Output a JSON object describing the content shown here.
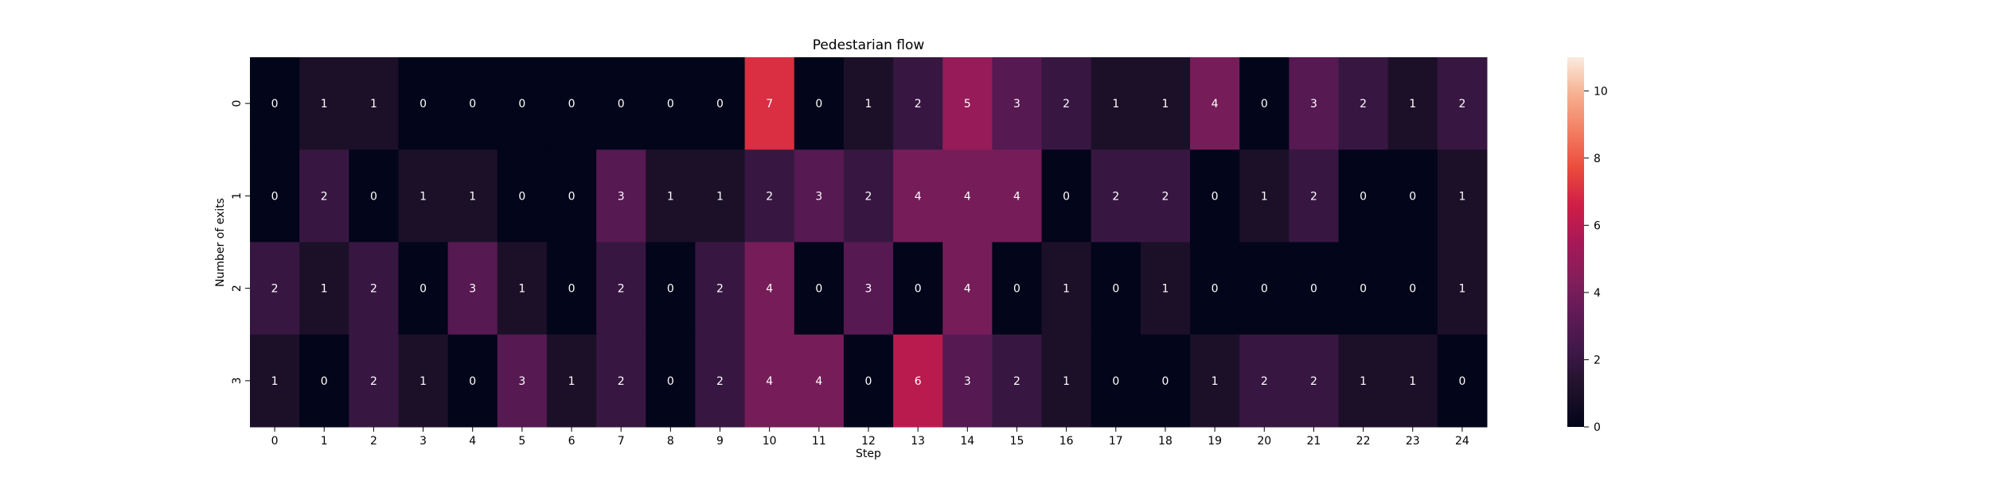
{
  "chart_data": {
    "type": "heatmap",
    "title": "Pedestarian flow",
    "xlabel": "Step",
    "ylabel": "Number of exits",
    "x_categories": [
      "0",
      "1",
      "2",
      "3",
      "4",
      "5",
      "6",
      "7",
      "8",
      "9",
      "10",
      "11",
      "12",
      "13",
      "14",
      "15",
      "16",
      "17",
      "18",
      "19",
      "20",
      "21",
      "22",
      "23",
      "24"
    ],
    "y_categories": [
      "0",
      "1",
      "2",
      "3"
    ],
    "values": [
      [
        0,
        1,
        1,
        0,
        0,
        0,
        0,
        0,
        0,
        0,
        7,
        0,
        1,
        2,
        5,
        3,
        2,
        1,
        1,
        4,
        0,
        3,
        2,
        1,
        2
      ],
      [
        0,
        2,
        0,
        1,
        1,
        0,
        0,
        3,
        1,
        1,
        2,
        3,
        2,
        4,
        4,
        4,
        0,
        2,
        2,
        0,
        1,
        2,
        0,
        0,
        1
      ],
      [
        2,
        1,
        2,
        0,
        3,
        1,
        0,
        2,
        0,
        2,
        4,
        0,
        3,
        0,
        4,
        0,
        1,
        0,
        1,
        0,
        0,
        0,
        0,
        0,
        1
      ],
      [
        1,
        0,
        2,
        1,
        0,
        3,
        1,
        2,
        0,
        2,
        4,
        4,
        0,
        6,
        3,
        2,
        1,
        0,
        0,
        1,
        2,
        2,
        1,
        1,
        0
      ]
    ],
    "colorbar": {
      "range": [
        0,
        11
      ],
      "ticks": [
        "0",
        "2",
        "4",
        "6",
        "8",
        "10"
      ],
      "colormap": "rocket"
    },
    "annotations": true,
    "grid": false
  }
}
